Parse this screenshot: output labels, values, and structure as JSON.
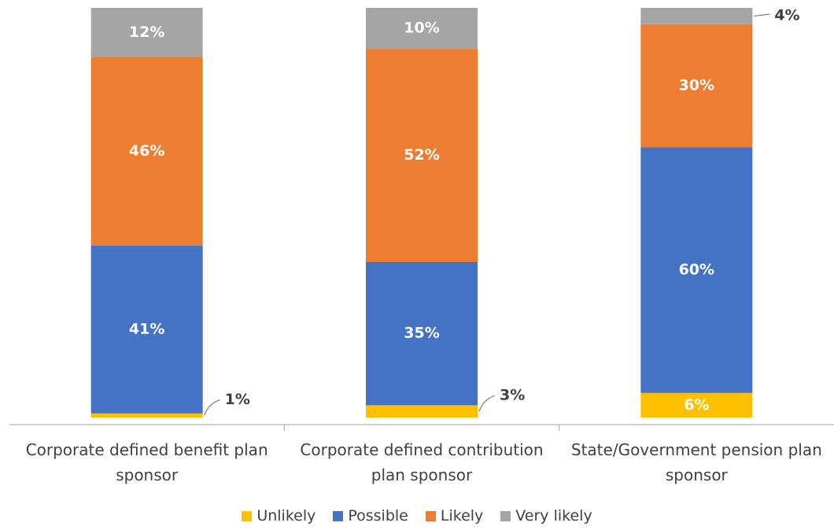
{
  "chart_data": {
    "type": "stacked_bar",
    "categories": [
      "Corporate defined benefit plan sponsor",
      "Corporate defined contribution plan sponsor",
      "State/Government pension plan sponsor"
    ],
    "series": [
      {
        "name": "Unlikely",
        "color": "#FFC000",
        "values": [
          1,
          3,
          6
        ],
        "value_labels": [
          "1%",
          "3%",
          "6%"
        ]
      },
      {
        "name": "Possible",
        "color": "#4472C4",
        "values": [
          41,
          35,
          60
        ],
        "value_labels": [
          "41%",
          "35%",
          "60%"
        ]
      },
      {
        "name": "Likely",
        "color": "#ED7D31",
        "values": [
          46,
          52,
          30
        ],
        "value_labels": [
          "46%",
          "52%",
          "30%"
        ]
      },
      {
        "name": "Very likely",
        "color": "#A5A5A5",
        "values": [
          12,
          10,
          4
        ],
        "value_labels": [
          "12%",
          "10%",
          "4%"
        ]
      }
    ],
    "ylim": [
      0,
      100
    ],
    "legend": "bottom"
  }
}
